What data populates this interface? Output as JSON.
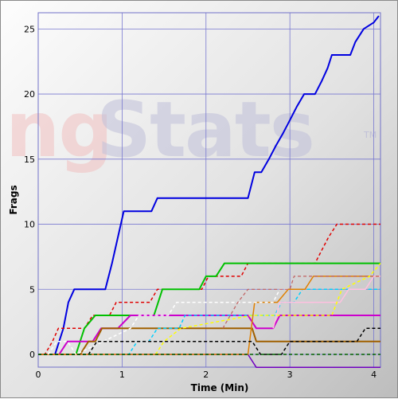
{
  "watermark": {
    "text1": "ng",
    "text2": "Stats",
    "tm": "TM"
  },
  "chart_data": {
    "type": "line",
    "title": "",
    "xlabel": "Time (Min)",
    "ylabel": "Frags",
    "xlim": [
      0,
      4.08
    ],
    "ylim": [
      0,
      26
    ],
    "xticks": [
      0,
      1,
      2,
      3,
      4
    ],
    "yticks": [
      0,
      5,
      10,
      15,
      20,
      25
    ],
    "grid": true,
    "legend": "none",
    "series": [
      {
        "color": "#0000e0",
        "dashed": false,
        "width": 2,
        "points": [
          [
            0,
            0
          ],
          [
            0.2,
            0
          ],
          [
            0.3,
            2
          ],
          [
            0.36,
            4
          ],
          [
            0.43,
            5
          ],
          [
            0.8,
            5
          ],
          [
            0.88,
            7
          ],
          [
            0.95,
            9
          ],
          [
            1.02,
            11
          ],
          [
            1.35,
            11
          ],
          [
            1.42,
            12
          ],
          [
            2.5,
            12
          ],
          [
            2.58,
            14
          ],
          [
            2.66,
            14
          ],
          [
            2.75,
            15
          ],
          [
            2.83,
            16
          ],
          [
            2.92,
            17
          ],
          [
            3.0,
            18
          ],
          [
            3.08,
            19
          ],
          [
            3.17,
            20
          ],
          [
            3.3,
            20
          ],
          [
            3.38,
            21
          ],
          [
            3.45,
            22
          ],
          [
            3.5,
            23
          ],
          [
            3.72,
            23
          ],
          [
            3.78,
            24
          ],
          [
            3.88,
            25
          ],
          [
            4.0,
            25.5
          ],
          [
            4.06,
            26
          ]
        ]
      },
      {
        "color": "#e00000",
        "dashed": true,
        "width": 1.5,
        "points": [
          [
            0,
            0
          ],
          [
            0.08,
            0
          ],
          [
            0.17,
            1
          ],
          [
            0.24,
            2
          ],
          [
            0.55,
            2
          ],
          [
            0.65,
            3
          ],
          [
            0.85,
            3
          ],
          [
            0.93,
            4
          ],
          [
            1.33,
            4
          ],
          [
            1.42,
            5
          ],
          [
            1.95,
            5
          ],
          [
            2.03,
            6
          ],
          [
            2.42,
            6
          ],
          [
            2.5,
            7
          ],
          [
            3.3,
            7
          ],
          [
            3.38,
            8
          ],
          [
            3.46,
            9
          ],
          [
            3.56,
            10
          ],
          [
            4.08,
            10
          ]
        ]
      },
      {
        "color": "#00c000",
        "dashed": false,
        "width": 2,
        "points": [
          [
            0,
            0
          ],
          [
            0.45,
            0
          ],
          [
            0.55,
            2
          ],
          [
            0.68,
            3
          ],
          [
            0.88,
            3
          ],
          [
            0.98,
            3
          ],
          [
            1.05,
            3
          ],
          [
            1.38,
            3
          ],
          [
            1.48,
            5
          ],
          [
            1.8,
            5
          ],
          [
            1.92,
            5
          ],
          [
            2.0,
            6
          ],
          [
            2.12,
            6
          ],
          [
            2.22,
            7
          ],
          [
            4.08,
            7
          ]
        ]
      },
      {
        "color": "#cc00cc",
        "dashed": false,
        "width": 2,
        "points": [
          [
            0,
            0
          ],
          [
            0.25,
            0
          ],
          [
            0.35,
            1
          ],
          [
            0.65,
            1
          ],
          [
            0.75,
            2
          ],
          [
            0.95,
            2
          ],
          [
            1.1,
            3
          ],
          [
            2.5,
            3
          ],
          [
            2.6,
            2
          ],
          [
            2.8,
            2
          ],
          [
            2.88,
            3
          ],
          [
            4.08,
            3
          ]
        ]
      },
      {
        "color": "#a06000",
        "dashed": false,
        "width": 2,
        "points": [
          [
            0,
            0
          ],
          [
            0.5,
            0
          ],
          [
            0.6,
            1
          ],
          [
            0.68,
            1
          ],
          [
            0.76,
            2
          ],
          [
            2.55,
            2
          ],
          [
            2.6,
            1
          ],
          [
            4.08,
            1
          ]
        ]
      },
      {
        "color": "#7000c0",
        "dashed": false,
        "width": 1.5,
        "points": [
          [
            0,
            0
          ],
          [
            2.5,
            0
          ],
          [
            2.6,
            -1
          ],
          [
            4.08,
            -1
          ]
        ]
      },
      {
        "color": "#00d0ff",
        "dashed": true,
        "width": 1.5,
        "points": [
          [
            0,
            0
          ],
          [
            1.08,
            0
          ],
          [
            1.18,
            1
          ],
          [
            1.32,
            1
          ],
          [
            1.42,
            2
          ],
          [
            1.68,
            2
          ],
          [
            1.75,
            3
          ],
          [
            2.48,
            3
          ],
          [
            2.6,
            3
          ],
          [
            2.82,
            3
          ],
          [
            2.9,
            4
          ],
          [
            3.05,
            4
          ],
          [
            3.15,
            5
          ],
          [
            4.08,
            5
          ]
        ]
      },
      {
        "color": "#e08000",
        "dashed": false,
        "width": 1.5,
        "points": [
          [
            0,
            0
          ],
          [
            0.02,
            0
          ],
          [
            0.12,
            0
          ],
          [
            2.5,
            0
          ],
          [
            2.58,
            4
          ],
          [
            2.85,
            4
          ],
          [
            2.98,
            5
          ],
          [
            3.18,
            5
          ],
          [
            3.28,
            6
          ],
          [
            4.08,
            6
          ]
        ]
      },
      {
        "color": "#ffffff",
        "dashed": true,
        "width": 1.5,
        "points": [
          [
            0.12,
            0
          ],
          [
            0.22,
            1
          ],
          [
            0.35,
            1
          ],
          [
            0.45,
            0
          ],
          [
            1.1,
            2
          ],
          [
            1.2,
            3
          ],
          [
            1.55,
            3
          ],
          [
            1.65,
            4
          ],
          [
            2.8,
            4
          ],
          [
            2.88,
            5
          ],
          [
            3.0,
            5
          ]
        ]
      },
      {
        "color": "#ffc0e0",
        "dashed": false,
        "width": 1.5,
        "points": [
          [
            2.8,
            2
          ],
          [
            2.88,
            4
          ],
          [
            3.6,
            4
          ],
          [
            3.7,
            5
          ],
          [
            3.9,
            5
          ],
          [
            4.0,
            6
          ],
          [
            4.08,
            6
          ]
        ]
      },
      {
        "color": "#ffff00",
        "dashed": true,
        "width": 1.5,
        "points": [
          [
            1.4,
            0
          ],
          [
            1.5,
            1
          ],
          [
            1.7,
            2
          ],
          [
            2.55,
            3
          ],
          [
            3.5,
            3
          ],
          [
            3.62,
            5
          ],
          [
            3.95,
            6
          ],
          [
            4.08,
            7
          ]
        ]
      },
      {
        "color": "#c06060",
        "dashed": true,
        "width": 1.2,
        "points": [
          [
            2.2,
            2
          ],
          [
            2.38,
            4
          ],
          [
            2.5,
            5
          ],
          [
            3.0,
            5
          ],
          [
            3.05,
            6
          ],
          [
            4.08,
            6
          ]
        ]
      },
      {
        "color": "#000000",
        "dashed": true,
        "width": 1.5,
        "points": [
          [
            0,
            0
          ],
          [
            0.6,
            0
          ],
          [
            0.7,
            1
          ],
          [
            2.55,
            1
          ],
          [
            2.65,
            0
          ],
          [
            2.9,
            0
          ],
          [
            3.0,
            1
          ],
          [
            3.8,
            1
          ],
          [
            3.9,
            2
          ],
          [
            4.08,
            2
          ]
        ]
      },
      {
        "color": "#006000",
        "dashed": true,
        "width": 1.5,
        "points": [
          [
            0,
            0
          ],
          [
            4.08,
            0
          ]
        ]
      }
    ]
  }
}
